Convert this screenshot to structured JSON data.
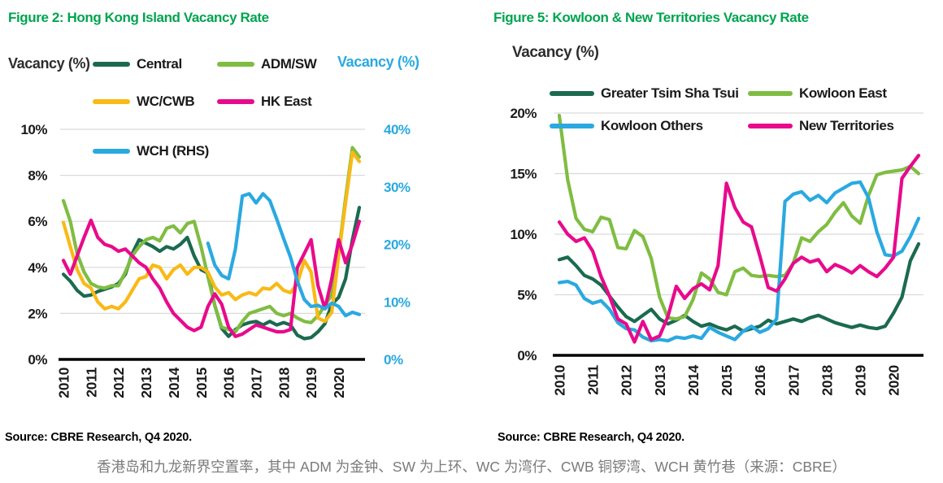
{
  "figure2": {
    "title": "Figure 2: Hong Kong Island Vacancy Rate",
    "y_axis_left_title": "Vacancy (%)",
    "y_axis_right_title": "Vacancy (%)",
    "source": "Source: CBRE Research, Q4 2020."
  },
  "figure5": {
    "title": "Figure 5: Kowloon & New Territories Vacancy Rate",
    "y_axis_title": "Vacancy (%)",
    "source": "Source: CBRE Research, Q4 2020."
  },
  "caption": "香港岛和九龙新界空置率，其中 ADM 为金钟、SW 为上环、WC 为湾仔、CWB 铜锣湾、WCH 黄竹巷（来源：CBRE）",
  "colors": {
    "title_green": "#00a44f",
    "dark_green": "#1B6A4F",
    "light_green": "#7FBD42",
    "yellow": "#F9B916",
    "magenta": "#E80A8C",
    "cyan": "#2AA9E0",
    "gridline": "#D9D9D9",
    "axis_black": "#000000",
    "caption_gray": "#7a7a7a"
  },
  "chart_data": [
    {
      "type": "line",
      "title": "Figure 2: Hong Kong Island Vacancy Rate",
      "x_frequency": "quarterly",
      "x_range": [
        "2010Q1",
        "2020Q4"
      ],
      "x_labels": [
        "2010",
        "2011",
        "2012",
        "2013",
        "2014",
        "2015",
        "2016",
        "2017",
        "2018",
        "2019",
        "2020"
      ],
      "ylabel_left": "Vacancy (%)",
      "ylim_left": [
        0,
        10
      ],
      "yticks_left": [
        "0%",
        "2%",
        "4%",
        "6%",
        "8%",
        "10%"
      ],
      "ylabel_right": "Vacancy (%)",
      "ylim_right": [
        0,
        40
      ],
      "yticks_right": [
        "0%",
        "10%",
        "20%",
        "30%",
        "40%"
      ],
      "grid": "horizontal",
      "legend_position": "top",
      "series": [
        {
          "name": "Central",
          "color": "#1B6A4F",
          "axis": "left",
          "values": [
            3.7,
            3.4,
            3.0,
            2.75,
            2.8,
            2.95,
            3.05,
            3.15,
            3.3,
            3.7,
            4.6,
            5.2,
            5.05,
            4.9,
            4.7,
            4.9,
            4.8,
            5.0,
            5.3,
            4.5,
            3.9,
            3.75,
            2.35,
            1.35,
            1.0,
            1.3,
            1.5,
            1.6,
            1.65,
            1.5,
            1.65,
            1.5,
            1.6,
            1.5,
            1.05,
            0.9,
            0.95,
            1.2,
            1.55,
            2.4,
            2.7,
            3.5,
            5.2,
            6.6
          ]
        },
        {
          "name": "ADM/SW",
          "color": "#7FBD42",
          "axis": "left",
          "values": [
            6.9,
            6.0,
            4.6,
            3.8,
            3.3,
            3.15,
            3.1,
            3.2,
            3.2,
            3.8,
            4.5,
            4.9,
            5.2,
            5.3,
            5.15,
            5.7,
            5.8,
            5.5,
            5.9,
            6.0,
            4.9,
            3.6,
            2.35,
            1.4,
            1.3,
            1.2,
            1.65,
            2.0,
            2.1,
            2.2,
            2.3,
            2.0,
            1.9,
            2.0,
            1.8,
            1.65,
            1.6,
            1.9,
            2.35,
            2.8,
            4.6,
            7.0,
            9.2,
            8.8
          ]
        },
        {
          "name": "WC/CWB",
          "color": "#F9B916",
          "axis": "left",
          "values": [
            5.95,
            4.9,
            3.9,
            3.3,
            3.1,
            2.5,
            2.2,
            2.3,
            2.2,
            2.5,
            3.0,
            3.5,
            3.6,
            4.1,
            4.0,
            3.5,
            3.9,
            4.1,
            3.7,
            4.0,
            4.0,
            3.8,
            3.15,
            2.8,
            2.9,
            2.6,
            2.8,
            2.9,
            2.8,
            3.1,
            3.05,
            3.3,
            3.0,
            2.9,
            3.3,
            4.3,
            3.8,
            1.8,
            1.65,
            2.05,
            4.5,
            6.8,
            9.0,
            8.6
          ]
        },
        {
          "name": "HK East",
          "color": "#E80A8C",
          "axis": "left",
          "values": [
            4.3,
            3.7,
            4.5,
            5.3,
            6.05,
            5.3,
            5.0,
            4.9,
            4.7,
            4.8,
            4.5,
            4.2,
            4.0,
            3.5,
            3.1,
            2.5,
            2.0,
            1.7,
            1.4,
            1.25,
            1.4,
            2.3,
            2.85,
            2.4,
            1.4,
            1.0,
            1.1,
            1.3,
            1.5,
            1.4,
            1.3,
            1.2,
            1.2,
            1.3,
            4.0,
            4.6,
            5.2,
            3.2,
            2.2,
            3.5,
            5.2,
            4.2,
            5.0,
            6.0
          ]
        },
        {
          "name": "WCH (RHS)",
          "color": "#2AA9E0",
          "axis": "right",
          "values": [
            null,
            null,
            null,
            null,
            null,
            null,
            null,
            null,
            null,
            null,
            null,
            null,
            null,
            null,
            null,
            null,
            null,
            null,
            null,
            null,
            null,
            20.2,
            16.4,
            14.6,
            14.0,
            19.2,
            28.4,
            28.8,
            27.2,
            28.8,
            27.6,
            24.4,
            21.0,
            17.8,
            13.6,
            10.4,
            9.2,
            9.4,
            8.8,
            9.8,
            9.2,
            7.6,
            8.2,
            7.8
          ]
        }
      ]
    },
    {
      "type": "line",
      "title": "Figure 5: Kowloon & New Territories Vacancy Rate",
      "x_frequency": "quarterly",
      "x_range": [
        "2010Q1",
        "2020Q4"
      ],
      "x_labels": [
        "2010",
        "2011",
        "2012",
        "2013",
        "2014",
        "2015",
        "2016",
        "2017",
        "2018",
        "2019",
        "2020"
      ],
      "ylabel_left": "Vacancy (%)",
      "ylim_left": [
        0,
        20
      ],
      "yticks_left": [
        "0%",
        "5%",
        "10%",
        "15%",
        "20%"
      ],
      "grid": "horizontal",
      "legend_position": "top",
      "series": [
        {
          "name": "Greater Tsim Sha Tsui",
          "color": "#1B6A4F",
          "axis": "left",
          "values": [
            7.9,
            8.1,
            7.4,
            6.6,
            6.3,
            5.8,
            4.9,
            4.0,
            3.2,
            2.8,
            3.3,
            3.8,
            3.0,
            2.6,
            2.9,
            3.3,
            2.8,
            2.4,
            2.6,
            2.3,
            2.1,
            2.4,
            2.0,
            2.2,
            2.4,
            2.9,
            2.6,
            2.8,
            3.0,
            2.8,
            3.1,
            3.3,
            3.0,
            2.7,
            2.5,
            2.3,
            2.5,
            2.3,
            2.2,
            2.4,
            3.5,
            4.8,
            7.8,
            9.2
          ]
        },
        {
          "name": "Kowloon East",
          "color": "#7FBD42",
          "axis": "left",
          "values": [
            19.8,
            14.5,
            11.3,
            10.4,
            10.2,
            11.4,
            11.2,
            8.9,
            8.8,
            10.3,
            9.8,
            8.0,
            4.8,
            3.1,
            3.0,
            3.2,
            4.6,
            6.8,
            6.3,
            5.2,
            5.0,
            6.9,
            7.2,
            6.6,
            6.5,
            6.6,
            6.5,
            6.6,
            7.6,
            9.7,
            9.4,
            10.2,
            10.8,
            11.8,
            12.6,
            11.5,
            10.9,
            13.2,
            14.9,
            15.1,
            15.2,
            15.3,
            15.6,
            15.0
          ]
        },
        {
          "name": "Kowloon Others",
          "color": "#2AA9E0",
          "axis": "left",
          "values": [
            6.0,
            6.1,
            5.8,
            4.7,
            4.3,
            4.5,
            3.8,
            2.7,
            2.2,
            2.1,
            1.5,
            1.2,
            1.3,
            1.2,
            1.5,
            1.4,
            1.6,
            1.4,
            2.3,
            1.9,
            1.6,
            1.3,
            2.0,
            2.4,
            1.9,
            2.2,
            3.0,
            12.7,
            13.3,
            13.5,
            12.8,
            13.2,
            12.6,
            13.4,
            13.8,
            14.2,
            14.3,
            13.0,
            10.2,
            8.3,
            8.2,
            8.6,
            9.8,
            11.3
          ]
        },
        {
          "name": "New Territories",
          "color": "#E80A8C",
          "axis": "left",
          "values": [
            11.0,
            10.0,
            9.4,
            9.7,
            8.6,
            6.5,
            4.9,
            3.0,
            2.6,
            1.1,
            2.8,
            1.3,
            1.6,
            3.2,
            5.7,
            4.7,
            5.5,
            5.9,
            5.4,
            7.4,
            14.2,
            12.2,
            11.0,
            10.6,
            8.2,
            5.6,
            5.3,
            6.3,
            7.6,
            8.1,
            7.7,
            7.9,
            6.9,
            7.5,
            7.2,
            6.8,
            7.4,
            6.9,
            6.5,
            7.2,
            8.1,
            14.6,
            15.6,
            16.5
          ]
        }
      ]
    }
  ]
}
